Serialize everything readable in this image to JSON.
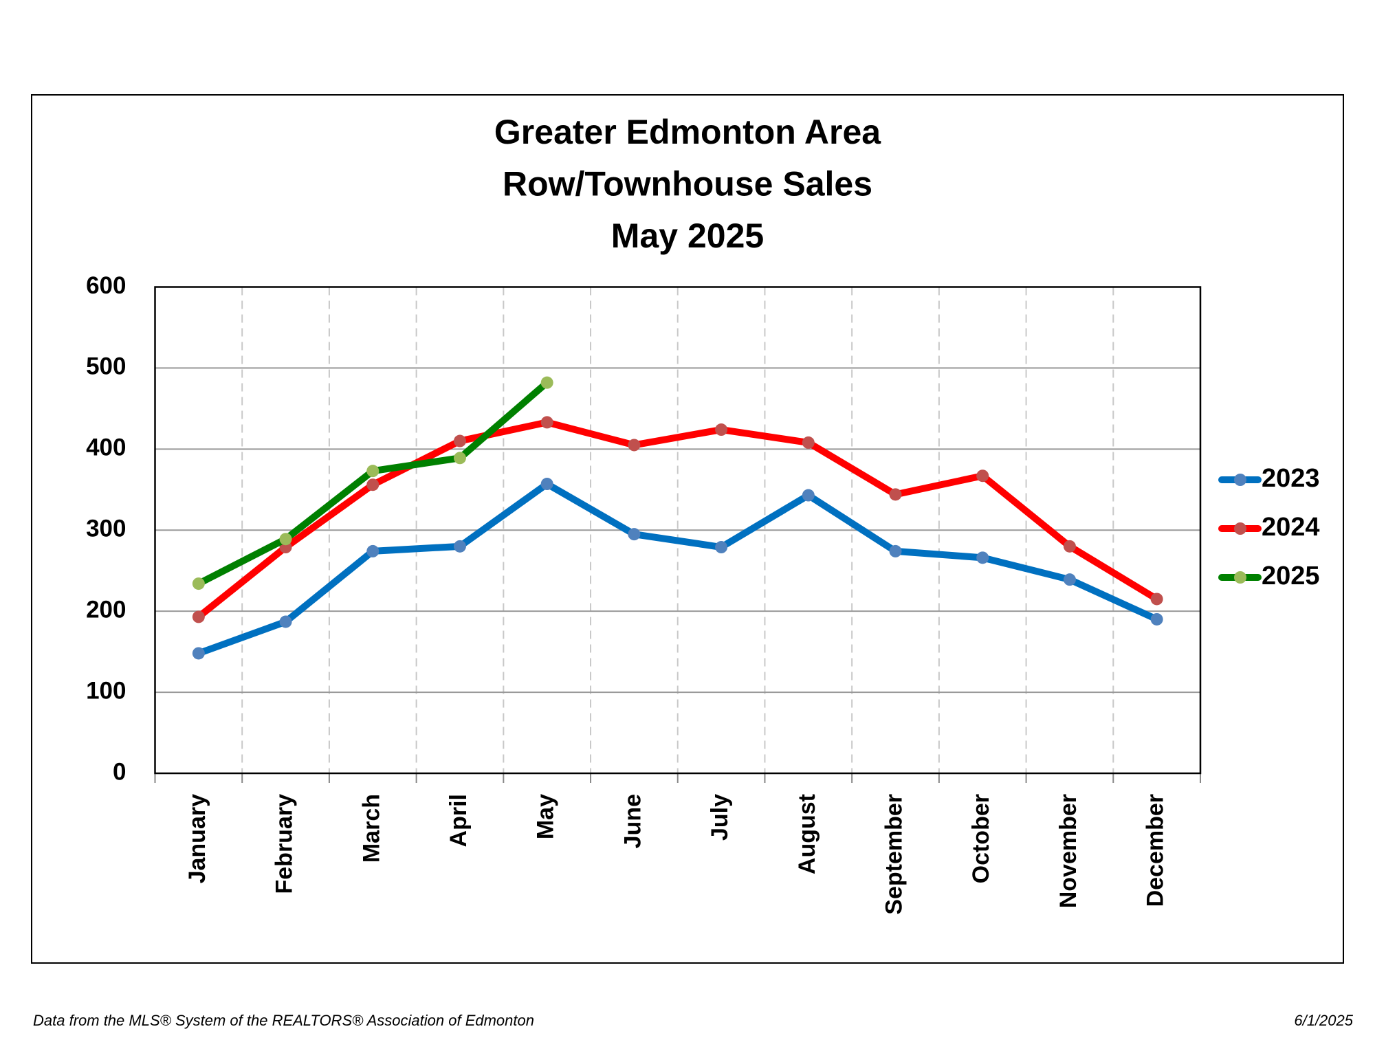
{
  "chart_data": {
    "type": "line",
    "title": [
      "Greater Edmonton Area",
      "Row/Townhouse Sales",
      "May 2025"
    ],
    "categories": [
      "January",
      "February",
      "March",
      "April",
      "May",
      "June",
      "July",
      "August",
      "September",
      "October",
      "November",
      "December"
    ],
    "series": [
      {
        "name": "2023",
        "color": "#0070c0",
        "marker_color": "#4f81bd",
        "values": [
          148,
          187,
          274,
          280,
          357,
          295,
          279,
          343,
          274,
          266,
          239,
          190
        ]
      },
      {
        "name": "2024",
        "color": "#ff0000",
        "marker_color": "#c0504d",
        "values": [
          193,
          279,
          356,
          410,
          433,
          405,
          424,
          408,
          344,
          367,
          280,
          215
        ]
      },
      {
        "name": "2025",
        "color": "#008000",
        "marker_color": "#9bbb59",
        "values": [
          234,
          289,
          373,
          389,
          482,
          null,
          null,
          null,
          null,
          null,
          null,
          null
        ]
      }
    ],
    "ylim": [
      0,
      600
    ],
    "yticks": [
      0,
      100,
      200,
      300,
      400,
      500,
      600
    ],
    "grid": true,
    "legend": "right",
    "footer_left": "Data from the MLS® System of the REALTORS® Association of Edmonton",
    "footer_right": "6/1/2025"
  }
}
